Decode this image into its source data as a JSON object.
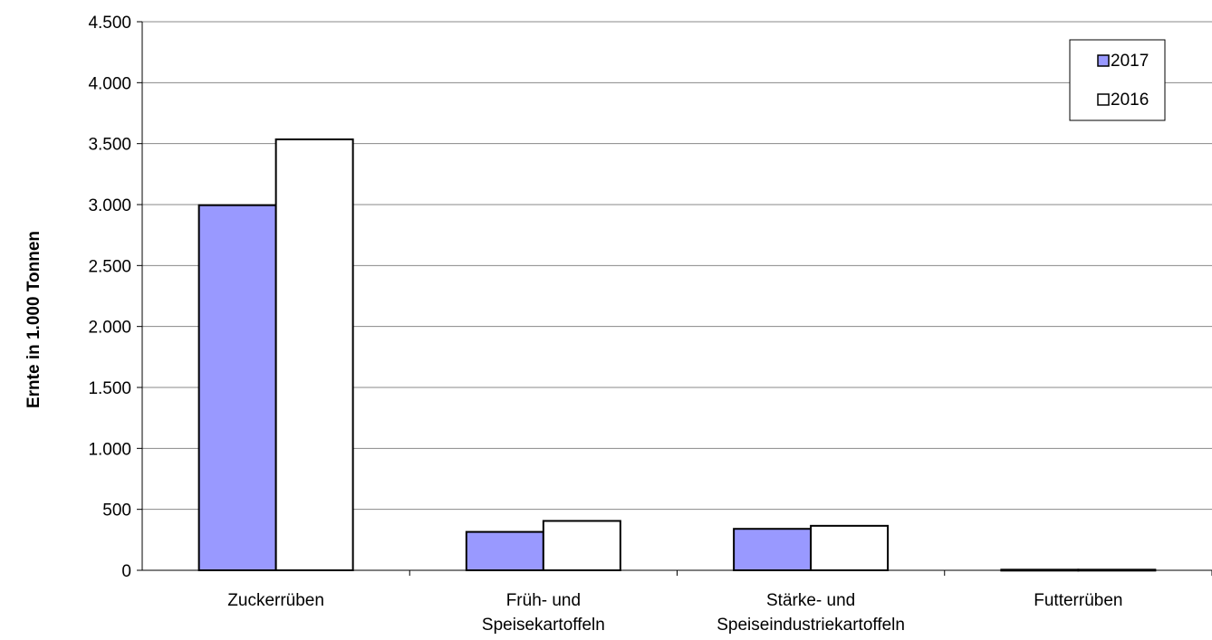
{
  "chart_data": {
    "type": "bar",
    "categories": [
      [
        "Zuckerrüben"
      ],
      [
        "Früh- und",
        "Speisekartoffeln"
      ],
      [
        "Stärke- und",
        "Speiseindustriekartoffeln"
      ],
      [
        "Futterrüben"
      ]
    ],
    "series": [
      {
        "name": "2017",
        "values": [
          2995,
          315,
          340,
          5
        ],
        "color": "#9999ff"
      },
      {
        "name": "2016",
        "values": [
          3535,
          405,
          365,
          5
        ],
        "color": "#ffffff"
      }
    ],
    "ylabel": "Ernte in 1.000 Tonnen",
    "xlabel": "",
    "title": "",
    "ylim": [
      0,
      4500
    ],
    "yticks": [
      0,
      500,
      1000,
      1500,
      2000,
      2500,
      3000,
      3500,
      4000,
      4500
    ],
    "ytick_labels": [
      "0",
      "500",
      "1.000",
      "1.500",
      "2.000",
      "2.500",
      "3.000",
      "3.500",
      "4.000",
      "4.500"
    ],
    "grid": true,
    "legend_position": "top-right"
  }
}
